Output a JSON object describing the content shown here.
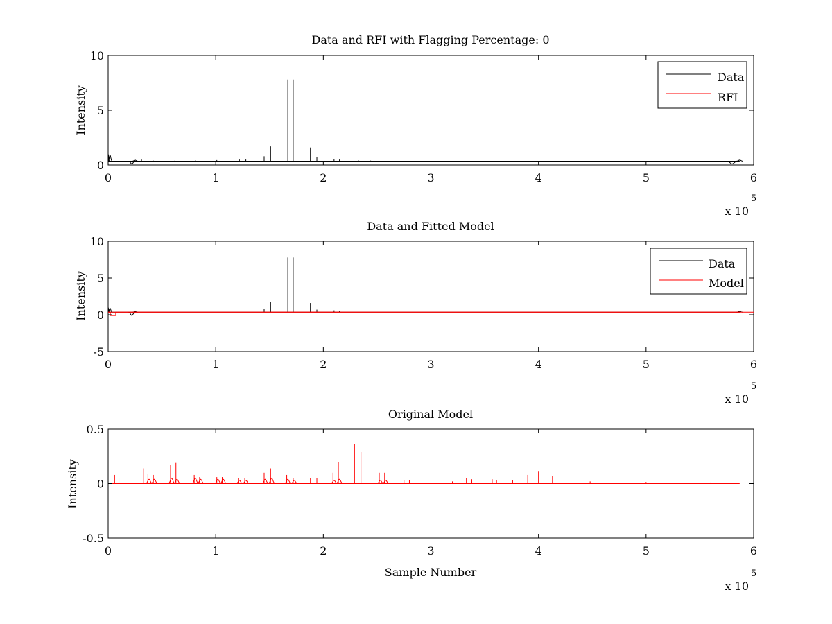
{
  "chart_data": [
    {
      "type": "line",
      "title": "Data and RFI with Flagging Percentage: 0",
      "xlabel": "",
      "ylabel": "Intensity",
      "xlim": [
        0,
        600000
      ],
      "ylim": [
        0,
        10
      ],
      "xticks": [
        "0",
        "1",
        "2",
        "3",
        "4",
        "5",
        "6"
      ],
      "yticks": [
        "0",
        "5",
        "10"
      ],
      "x_multiplier": "x 10",
      "x_multiplier_exp": "5",
      "legend_position": "top-right",
      "grid": false,
      "series": [
        {
          "name": "Data",
          "color": "#000000",
          "baseline": 0.35,
          "bumps": [
            [
              0,
              1.0,
              600
            ],
            [
              1800,
              0.9,
              900
            ],
            [
              22000,
              0.1,
              1500
            ],
            [
              25000,
              0.45,
              1200
            ],
            [
              580000,
              0.1,
              2500
            ],
            [
              587000,
              0.45,
              1500
            ]
          ],
          "spikes": [
            [
              31000,
              0.5
            ],
            [
              42000,
              0.4
            ],
            [
              62000,
              0.4
            ],
            [
              81000,
              0.4
            ],
            [
              101000,
              0.45
            ],
            [
              122000,
              0.5
            ],
            [
              128000,
              0.5
            ],
            [
              145000,
              0.8
            ],
            [
              151000,
              1.7
            ],
            [
              167000,
              7.8
            ],
            [
              172000,
              7.8
            ],
            [
              188000,
              1.6
            ],
            [
              194000,
              0.7
            ],
            [
              210000,
              0.55
            ],
            [
              215000,
              0.5
            ],
            [
              233000,
              0.4
            ],
            [
              244000,
              0.4
            ]
          ]
        },
        {
          "name": "RFI",
          "color": "#ff0000",
          "values": []
        }
      ]
    },
    {
      "type": "line",
      "title": "Data and Fitted Model",
      "xlabel": "",
      "ylabel": "Intensity",
      "xlim": [
        0,
        600000
      ],
      "ylim": [
        -5,
        10
      ],
      "xticks": [
        "0",
        "1",
        "2",
        "3",
        "4",
        "5",
        "6"
      ],
      "yticks": [
        "-5",
        "0",
        "5",
        "10"
      ],
      "x_multiplier": "x 10",
      "x_multiplier_exp": "5",
      "legend_position": "top-right",
      "grid": false,
      "series": [
        {
          "name": "Data",
          "color": "#000000",
          "baseline": 0.35,
          "bumps": [
            [
              0,
              1.0,
              600
            ],
            [
              1800,
              0.9,
              900
            ],
            [
              22000,
              -0.1,
              1500
            ],
            [
              25000,
              0.45,
              1200
            ],
            [
              587000,
              0.45,
              1500
            ]
          ],
          "spikes": [
            [
              145000,
              0.8
            ],
            [
              151000,
              1.7
            ],
            [
              167000,
              7.8
            ],
            [
              172000,
              7.8
            ],
            [
              188000,
              1.6
            ],
            [
              194000,
              0.7
            ],
            [
              210000,
              0.6
            ],
            [
              215000,
              0.5
            ]
          ]
        },
        {
          "name": "Model",
          "color": "#ff0000",
          "baseline": 0.35,
          "segments": [
            [
              [
                0,
                0.35
              ],
              [
                2000,
                0.35
              ],
              [
                2000,
                -0.1
              ],
              [
                7000,
                -0.1
              ],
              [
                7000,
                0.35
              ],
              [
                600000,
                0.35
              ]
            ]
          ]
        }
      ]
    },
    {
      "type": "line",
      "title": "Original Model",
      "xlabel": "Sample Number",
      "ylabel": "Intensity",
      "xlim": [
        0,
        600000
      ],
      "ylim": [
        -0.5,
        0.5
      ],
      "xticks": [
        "0",
        "1",
        "2",
        "3",
        "4",
        "5",
        "6"
      ],
      "yticks": [
        "-0.5",
        "0",
        "0.5"
      ],
      "x_multiplier": "x 10",
      "x_multiplier_exp": "5",
      "grid": false,
      "series": [
        {
          "color": "#ff0000",
          "baseline": 0.0,
          "spikes": [
            [
              6000,
              0.08
            ],
            [
              10000,
              0.05
            ],
            [
              33000,
              0.14
            ],
            [
              37000,
              0.09
            ],
            [
              42000,
              0.08
            ],
            [
              58000,
              0.17
            ],
            [
              63000,
              0.19
            ],
            [
              80000,
              0.08
            ],
            [
              85000,
              0.06
            ],
            [
              101000,
              0.06
            ],
            [
              106000,
              0.06
            ],
            [
              121000,
              0.05
            ],
            [
              127000,
              0.05
            ],
            [
              145000,
              0.1
            ],
            [
              151000,
              0.14
            ],
            [
              166000,
              0.08
            ],
            [
              172000,
              0.05
            ],
            [
              188000,
              0.05
            ],
            [
              194000,
              0.05
            ],
            [
              209000,
              0.1
            ],
            [
              214000,
              0.2
            ],
            [
              229000,
              0.36
            ],
            [
              235000,
              0.29
            ],
            [
              252000,
              0.1
            ],
            [
              257000,
              0.1
            ],
            [
              275000,
              0.03
            ],
            [
              280000,
              0.03
            ],
            [
              320000,
              0.02
            ],
            [
              333000,
              0.05
            ],
            [
              338000,
              0.04
            ],
            [
              357000,
              0.04
            ],
            [
              361000,
              0.03
            ],
            [
              376000,
              0.03
            ],
            [
              390000,
              0.08
            ],
            [
              400000,
              0.11
            ],
            [
              413000,
              0.07
            ],
            [
              448000,
              0.02
            ],
            [
              500000,
              0.015
            ],
            [
              560000,
              0.01
            ]
          ],
          "bumps": [
            [
              38000,
              0.04,
              1500
            ],
            [
              43000,
              0.04,
              1500
            ],
            [
              59000,
              0.05,
              1500
            ],
            [
              64000,
              0.04,
              1500
            ],
            [
              81000,
              0.05,
              1500
            ],
            [
              86000,
              0.04,
              1500
            ],
            [
              102000,
              0.04,
              1500
            ],
            [
              107000,
              0.04,
              1500
            ],
            [
              122000,
              0.03,
              1500
            ],
            [
              128000,
              0.03,
              1500
            ],
            [
              146000,
              0.04,
              1500
            ],
            [
              152000,
              0.05,
              1500
            ],
            [
              167000,
              0.04,
              1500
            ],
            [
              173000,
              0.03,
              1500
            ],
            [
              210000,
              0.03,
              1500
            ],
            [
              215000,
              0.04,
              1500
            ],
            [
              253000,
              0.03,
              1500
            ],
            [
              258000,
              0.03,
              1500
            ]
          ]
        }
      ]
    }
  ]
}
